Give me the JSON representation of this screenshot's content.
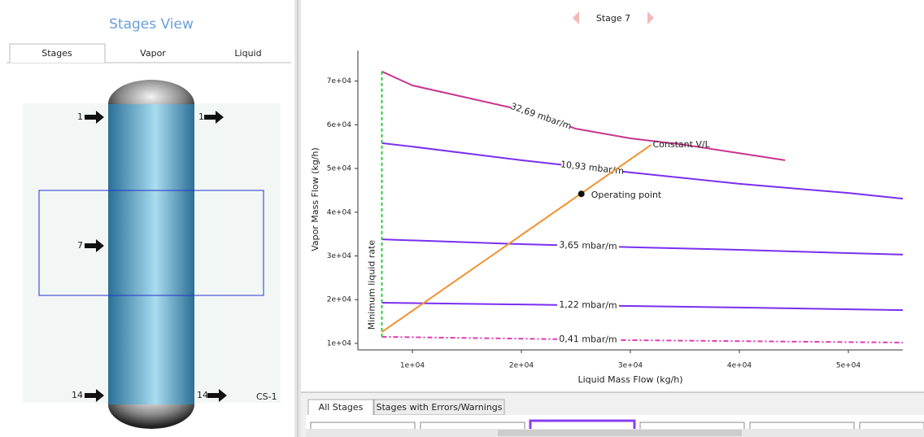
{
  "left_panel": {
    "title": "Stages View",
    "tabs": [
      "Stages",
      "Vapor",
      "Liquid"
    ],
    "feeds_left": [
      "1",
      "7",
      "14"
    ],
    "feeds_right": [
      "1",
      "14"
    ],
    "column_name": "CS-1"
  },
  "header": {
    "stage": "Stage 7"
  },
  "chart_data": {
    "type": "line",
    "x_label": "Liquid Mass Flow (kg/h)",
    "y_label": "Vapor Mass Flow (kg/h)",
    "xlim": [
      5000,
      55000
    ],
    "ylim": [
      8500,
      77000
    ],
    "xticks": [
      {
        "value": 10000,
        "label": "1e+04"
      },
      {
        "value": 20000,
        "label": "2e+04"
      },
      {
        "value": 30000,
        "label": "3e+04"
      },
      {
        "value": 40000,
        "label": "4e+04"
      },
      {
        "value": 50000,
        "label": "5e+04"
      }
    ],
    "yticks": [
      {
        "value": 10000,
        "label": "1e+04"
      },
      {
        "value": 20000,
        "label": "2e+04"
      },
      {
        "value": 30000,
        "label": "3e+04"
      },
      {
        "value": 40000,
        "label": "4e+04"
      },
      {
        "value": 50000,
        "label": "5e+04"
      },
      {
        "value": 60000,
        "label": "6e+04"
      },
      {
        "value": 70000,
        "label": "7e+04"
      }
    ],
    "grid": false,
    "series": [
      {
        "name": "32,69 mbar/m",
        "color": "#c8358f",
        "line_style": "solid",
        "x": [
          7200,
          10000,
          20000,
          25000,
          30000,
          35000,
          40000,
          44200
        ],
        "values": [
          72200,
          69000,
          63400,
          59100,
          56900,
          55400,
          53500,
          51900
        ]
      },
      {
        "name": "10,93 mbar/m",
        "color": "#7a2ff0",
        "line_style": "solid",
        "x": [
          7200,
          10000,
          20000,
          30000,
          40000,
          50000,
          55000
        ],
        "values": [
          55800,
          55000,
          51900,
          49100,
          46500,
          44400,
          43100
        ]
      },
      {
        "name": "3,65 mbar/m",
        "color": "#7a2ff0",
        "line_style": "solid",
        "x": [
          7200,
          20000,
          30000,
          40000,
          50000,
          55000
        ],
        "values": [
          33800,
          32700,
          32000,
          31400,
          30650,
          30300
        ]
      },
      {
        "name": "1,22 mbar/m",
        "color": "#7a2ff0",
        "line_style": "solid",
        "x": [
          7200,
          20000,
          30000,
          40000,
          55000
        ],
        "values": [
          19300,
          18900,
          18550,
          18200,
          17600
        ]
      },
      {
        "name": "0,41 mbar/m",
        "color": "#e03cb4",
        "line_style": "dashdot",
        "x": [
          7200,
          30000,
          55000
        ],
        "values": [
          11500,
          10730,
          10180
        ]
      },
      {
        "name": "Minimum liquid rate",
        "color": "#2ecc40",
        "line_style": "dashed",
        "x": [
          7200,
          7200
        ],
        "values": [
          11500,
          72200
        ]
      },
      {
        "name": "Constant V/L",
        "color": "#f29130",
        "line_style": "solid",
        "x": [
          7200,
          31900
        ],
        "values": [
          12600,
          55400
        ]
      }
    ],
    "operating_point": {
      "label": "Operating point",
      "x": 25500,
      "y": 44200,
      "color": "#111111"
    }
  },
  "bottom_panel": {
    "tabs": [
      "All Stages",
      "Stages with Errors/Warnings"
    ]
  }
}
